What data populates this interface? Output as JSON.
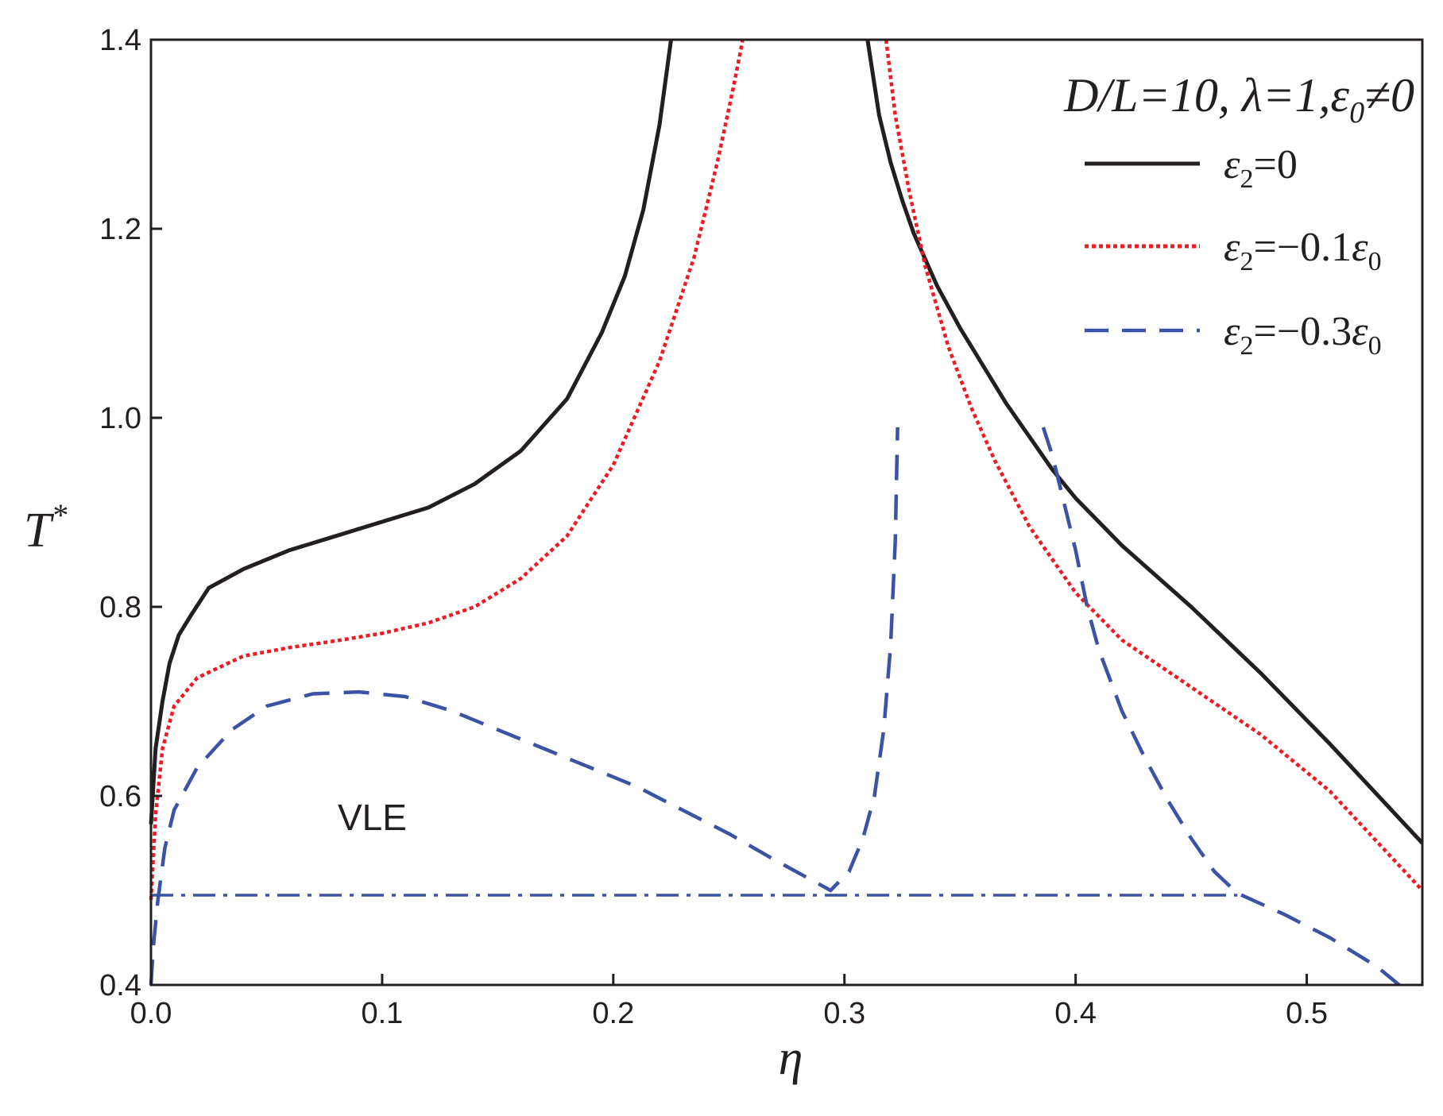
{
  "chart_data": {
    "type": "line",
    "title": "",
    "xlabel": "η",
    "ylabel": "T*",
    "xlim": [
      0.0,
      0.55
    ],
    "ylim": [
      0.4,
      1.4
    ],
    "xticks": [
      "0.0",
      "0.1",
      "0.2",
      "0.3",
      "0.4",
      "0.5"
    ],
    "yticks": [
      "0.4",
      "0.6",
      "0.8",
      "1.0",
      "1.2",
      "1.4"
    ],
    "grid": false,
    "legend_position": "top-right",
    "legend_title": "D/L=10, λ=1, ε0≠0",
    "annotations": [
      {
        "text": "VLE",
        "x": 0.1,
        "y": 0.575
      }
    ],
    "series": [
      {
        "name": "ε2=0",
        "color": "#231f20",
        "style": "solid",
        "points": [
          [
            0.0,
            0.57
          ],
          [
            0.002,
            0.65
          ],
          [
            0.005,
            0.7
          ],
          [
            0.008,
            0.74
          ],
          [
            0.012,
            0.77
          ],
          [
            0.017,
            0.79
          ],
          [
            0.025,
            0.82
          ],
          [
            0.04,
            0.84
          ],
          [
            0.06,
            0.86
          ],
          [
            0.08,
            0.875
          ],
          [
            0.1,
            0.89
          ],
          [
            0.12,
            0.905
          ],
          [
            0.14,
            0.93
          ],
          [
            0.16,
            0.965
          ],
          [
            0.18,
            1.02
          ],
          [
            0.195,
            1.09
          ],
          [
            0.205,
            1.15
          ],
          [
            0.213,
            1.22
          ],
          [
            0.22,
            1.31
          ],
          [
            0.225,
            1.4
          ]
        ]
      },
      {
        "name": "ε2=0",
        "color": "#231f20",
        "style": "solid",
        "points": [
          [
            0.31,
            1.4
          ],
          [
            0.315,
            1.32
          ],
          [
            0.32,
            1.27
          ],
          [
            0.325,
            1.23
          ],
          [
            0.33,
            1.195
          ],
          [
            0.34,
            1.14
          ],
          [
            0.35,
            1.095
          ],
          [
            0.36,
            1.055
          ],
          [
            0.37,
            1.015
          ],
          [
            0.38,
            0.98
          ],
          [
            0.39,
            0.945
          ],
          [
            0.4,
            0.915
          ],
          [
            0.42,
            0.865
          ],
          [
            0.45,
            0.8
          ],
          [
            0.48,
            0.73
          ],
          [
            0.51,
            0.655
          ],
          [
            0.55,
            0.55
          ]
        ]
      },
      {
        "name": "ε2=−0.1ε0",
        "color": "#ed1c24",
        "style": "dotted",
        "points": [
          [
            0.0,
            0.49
          ],
          [
            0.002,
            0.58
          ],
          [
            0.005,
            0.65
          ],
          [
            0.01,
            0.695
          ],
          [
            0.02,
            0.725
          ],
          [
            0.04,
            0.748
          ],
          [
            0.06,
            0.757
          ],
          [
            0.08,
            0.764
          ],
          [
            0.1,
            0.772
          ],
          [
            0.12,
            0.783
          ],
          [
            0.14,
            0.8
          ],
          [
            0.16,
            0.83
          ],
          [
            0.18,
            0.875
          ],
          [
            0.2,
            0.95
          ],
          [
            0.22,
            1.06
          ],
          [
            0.235,
            1.17
          ],
          [
            0.245,
            1.27
          ],
          [
            0.252,
            1.35
          ],
          [
            0.256,
            1.4
          ]
        ]
      },
      {
        "name": "ε2=−0.1ε0",
        "color": "#ed1c24",
        "style": "dotted",
        "points": [
          [
            0.318,
            1.4
          ],
          [
            0.322,
            1.32
          ],
          [
            0.328,
            1.24
          ],
          [
            0.335,
            1.16
          ],
          [
            0.345,
            1.075
          ],
          [
            0.355,
            1.01
          ],
          [
            0.365,
            0.955
          ],
          [
            0.38,
            0.885
          ],
          [
            0.4,
            0.815
          ],
          [
            0.42,
            0.765
          ],
          [
            0.45,
            0.715
          ],
          [
            0.48,
            0.665
          ],
          [
            0.51,
            0.605
          ],
          [
            0.55,
            0.5
          ]
        ]
      },
      {
        "name": "ε2=−0.3ε0",
        "color": "#3a53a4",
        "style": "dashed",
        "points": [
          [
            0.0,
            0.4
          ],
          [
            0.001,
            0.44
          ],
          [
            0.003,
            0.49
          ],
          [
            0.006,
            0.545
          ],
          [
            0.01,
            0.585
          ],
          [
            0.02,
            0.63
          ],
          [
            0.035,
            0.67
          ],
          [
            0.05,
            0.695
          ],
          [
            0.07,
            0.708
          ],
          [
            0.09,
            0.71
          ],
          [
            0.11,
            0.705
          ],
          [
            0.13,
            0.69
          ],
          [
            0.15,
            0.67
          ],
          [
            0.17,
            0.65
          ],
          [
            0.19,
            0.63
          ],
          [
            0.21,
            0.61
          ],
          [
            0.23,
            0.585
          ],
          [
            0.25,
            0.56
          ],
          [
            0.27,
            0.532
          ],
          [
            0.294,
            0.5
          ],
          [
            0.302,
            0.52
          ],
          [
            0.308,
            0.555
          ],
          [
            0.313,
            0.6
          ],
          [
            0.317,
            0.67
          ],
          [
            0.32,
            0.76
          ],
          [
            0.322,
            0.87
          ],
          [
            0.323,
            0.99
          ]
        ]
      },
      {
        "name": "ε2=−0.3ε0",
        "color": "#3a53a4",
        "style": "dashed",
        "points": [
          [
            0.386,
            0.99
          ],
          [
            0.39,
            0.96
          ],
          [
            0.395,
            0.91
          ],
          [
            0.4,
            0.86
          ],
          [
            0.405,
            0.8
          ],
          [
            0.41,
            0.755
          ],
          [
            0.42,
            0.69
          ],
          [
            0.43,
            0.64
          ],
          [
            0.44,
            0.595
          ],
          [
            0.45,
            0.555
          ],
          [
            0.46,
            0.52
          ],
          [
            0.47,
            0.497
          ],
          [
            0.49,
            0.475
          ],
          [
            0.51,
            0.45
          ],
          [
            0.53,
            0.42
          ],
          [
            0.54,
            0.4
          ]
        ]
      },
      {
        "name": "",
        "color": "#3a53a4",
        "style": "dashdot",
        "points": [
          [
            0.0,
            0.495
          ],
          [
            0.47,
            0.495
          ]
        ]
      }
    ]
  },
  "legend": {
    "title": {
      "main": "D/L=10, λ=1,",
      "eps": "ε",
      "sub": "0",
      "rel": "≠0"
    },
    "entries": [
      {
        "eps": "ε",
        "sub": "2",
        "text": "=0",
        "eps2": "",
        "sub2": ""
      },
      {
        "eps": "ε",
        "sub": "2",
        "text": "=−0.1",
        "eps2": "ε",
        "sub2": "0"
      },
      {
        "eps": "ε",
        "sub": "2",
        "text": "=−0.3",
        "eps2": "ε",
        "sub2": "0"
      }
    ]
  },
  "annotation_label": "VLE",
  "ylabel_sup": "*"
}
